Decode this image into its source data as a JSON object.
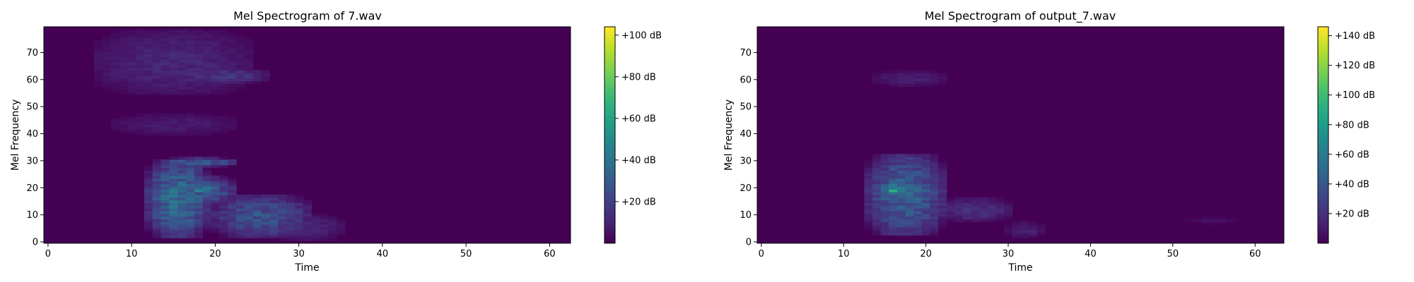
{
  "chart_data": [
    {
      "type": "heatmap",
      "title": "Mel Spectrogram of 7.wav",
      "xlabel": "Time",
      "ylabel": "Mel Frequency",
      "xlim": [
        -0.5,
        62.5
      ],
      "ylim": [
        -0.5,
        79.5
      ],
      "x_ticks": [
        0,
        10,
        20,
        30,
        40,
        50,
        60
      ],
      "y_ticks": [
        0,
        10,
        20,
        30,
        40,
        50,
        60,
        70
      ],
      "n_frames": 63,
      "n_mels": 80,
      "colormap": "viridis",
      "colorbar": {
        "min": 0,
        "max": 104,
        "ticks": [
          20,
          40,
          60,
          80,
          100
        ],
        "tick_labels": [
          "+20 dB",
          "+40 dB",
          "+60 dB",
          "+80 dB",
          "+100 dB"
        ]
      },
      "blobs": [
        {
          "t0": 12,
          "t1": 19,
          "m0": 2,
          "m1": 30,
          "peak": 45
        },
        {
          "t0": 14,
          "t1": 22,
          "m0": 14,
          "m1": 24,
          "peak": 40
        },
        {
          "t0": 17,
          "t1": 20,
          "m0": 18,
          "m1": 21,
          "peak": 62
        },
        {
          "t0": 14,
          "t1": 22,
          "m0": 28,
          "m1": 31,
          "peak": 40
        },
        {
          "t0": 20,
          "t1": 31,
          "m0": 2,
          "m1": 17,
          "peak": 32
        },
        {
          "t0": 27,
          "t1": 35,
          "m0": 1,
          "m1": 10,
          "peak": 14
        },
        {
          "t0": 6,
          "t1": 24,
          "m0": 55,
          "m1": 78,
          "peak": 14
        },
        {
          "t0": 16,
          "t1": 26,
          "m0": 59,
          "m1": 64,
          "peak": 22
        },
        {
          "t0": 8,
          "t1": 22,
          "m0": 40,
          "m1": 47,
          "peak": 10
        }
      ]
    },
    {
      "type": "heatmap",
      "title": "Mel Spectrogram of output_7.wav",
      "xlabel": "Time",
      "ylabel": "Mel Frequency",
      "xlim": [
        -0.5,
        63.5
      ],
      "ylim": [
        -0.5,
        79.5
      ],
      "x_ticks": [
        0,
        10,
        20,
        30,
        40,
        50,
        60
      ],
      "y_ticks": [
        0,
        10,
        20,
        30,
        40,
        50,
        60,
        70
      ],
      "n_frames": 64,
      "n_mels": 80,
      "colormap": "viridis",
      "colorbar": {
        "min": 0,
        "max": 146,
        "ticks": [
          20,
          40,
          60,
          80,
          100,
          120,
          140
        ],
        "tick_labels": [
          "+20 dB",
          "+40 dB",
          "+60 dB",
          "+80 dB",
          "+100 dB",
          "+120 dB",
          "+140 dB"
        ]
      },
      "blobs": [
        {
          "t0": 13,
          "t1": 22,
          "m0": 3,
          "m1": 32,
          "peak": 55
        },
        {
          "t0": 14,
          "t1": 19,
          "m0": 16,
          "m1": 23,
          "peak": 70
        },
        {
          "t0": 15,
          "t1": 17,
          "m0": 18,
          "m1": 20,
          "peak": 135
        },
        {
          "t0": 22,
          "t1": 30,
          "m0": 8,
          "m1": 16,
          "peak": 25
        },
        {
          "t0": 30,
          "t1": 34,
          "m0": 2,
          "m1": 7,
          "peak": 18
        },
        {
          "t0": 14,
          "t1": 22,
          "m0": 58,
          "m1": 63,
          "peak": 16
        },
        {
          "t0": 52,
          "t1": 58,
          "m0": 7,
          "m1": 9,
          "peak": 8
        }
      ]
    }
  ]
}
